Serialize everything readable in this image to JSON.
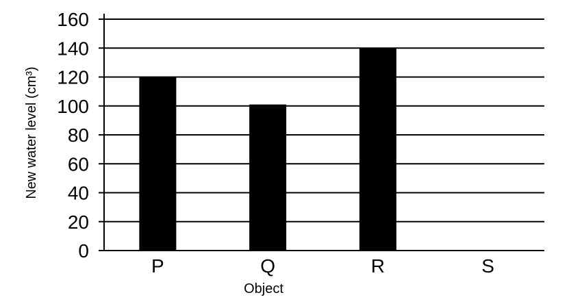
{
  "chart_data": {
    "type": "bar",
    "categories": [
      "P",
      "Q",
      "R",
      "S"
    ],
    "values": [
      120,
      101,
      140,
      null
    ],
    "title": "",
    "xlabel": "Object",
    "ylabel": "New water level (cm³)",
    "ylim": [
      0,
      160
    ],
    "yticks": [
      0,
      20,
      40,
      60,
      80,
      100,
      120,
      140,
      160
    ],
    "grid": true,
    "legend": "none",
    "bar_color": "#000000",
    "grid_color": "#000000"
  }
}
